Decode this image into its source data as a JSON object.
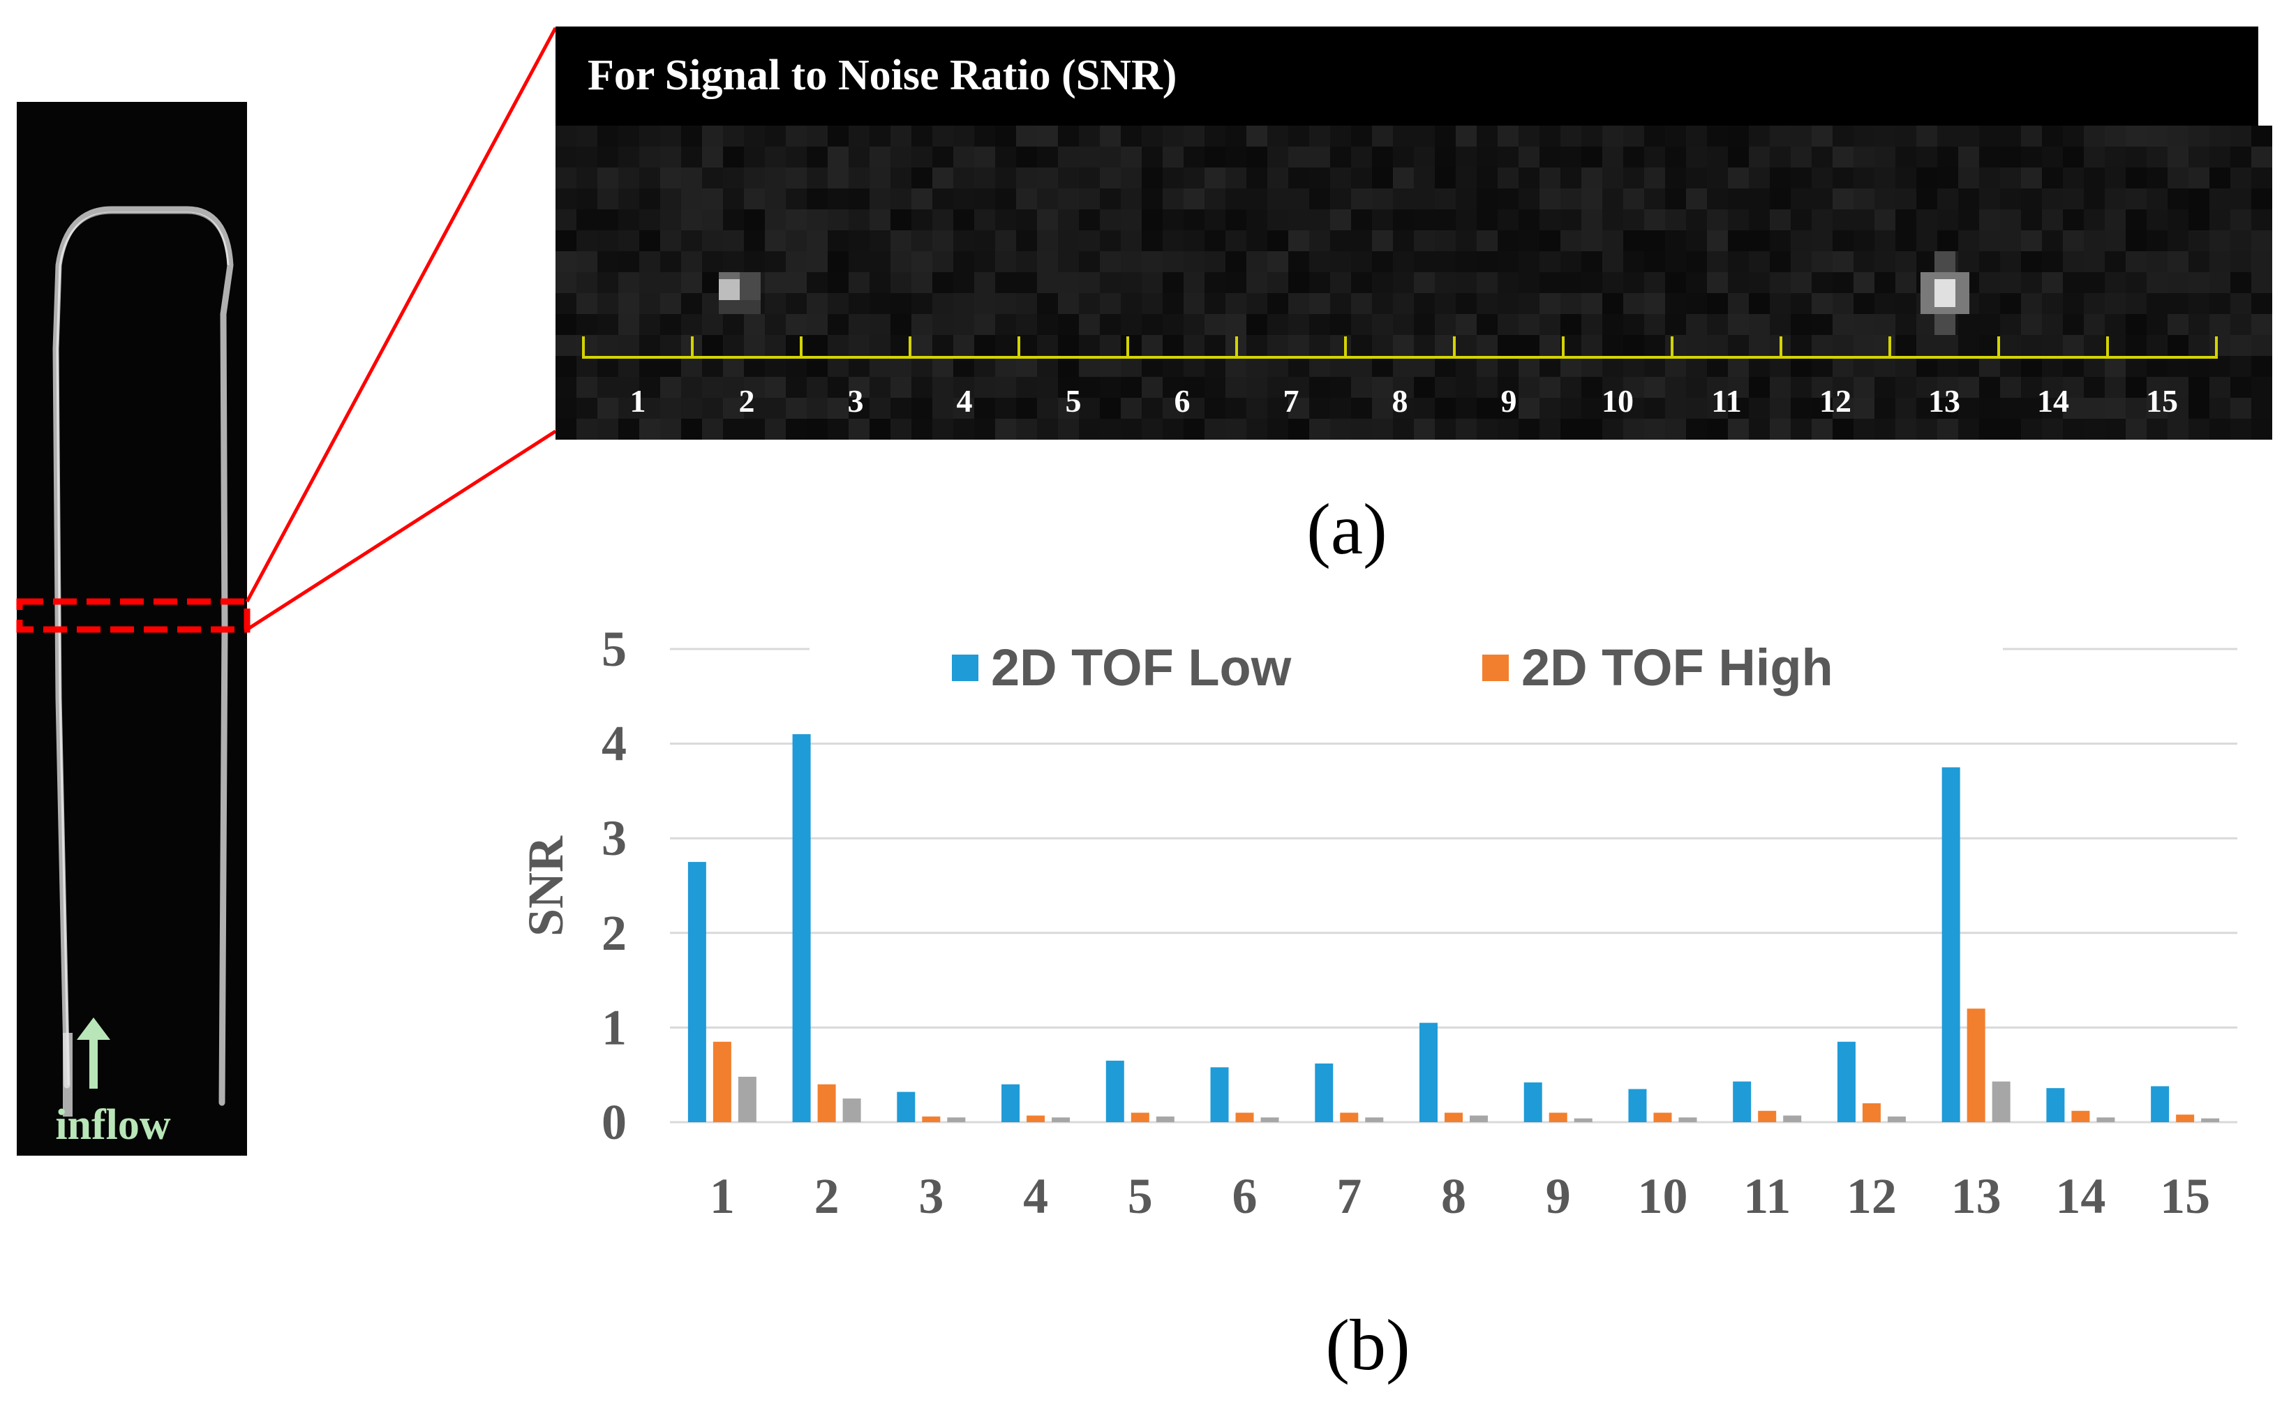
{
  "phantom": {
    "inflow_label": "inflow"
  },
  "roi_panel": {
    "title": "For Signal to Noise Ratio (SNR)",
    "roi_labels": [
      "1",
      "2",
      "3",
      "4",
      "5",
      "6",
      "7",
      "8",
      "9",
      "10",
      "11",
      "12",
      "13",
      "14",
      "15"
    ],
    "caption": "(a)"
  },
  "chart_caption": "(b)",
  "colors": {
    "series_low": "#1f9bd7",
    "series_high": "#f27f2e",
    "series_third": "#a6a6a6",
    "gridline": "#d9d9d9",
    "axis_text": "#595959",
    "roi_highlight": "#ff0000",
    "ruler": "#d4d400"
  },
  "chart_data": {
    "type": "bar",
    "title": "",
    "xlabel": "",
    "ylabel": "SNR",
    "ylim": [
      0,
      5
    ],
    "yticks": [
      "0",
      "1",
      "2",
      "3",
      "4",
      "5"
    ],
    "categories": [
      "1",
      "2",
      "3",
      "4",
      "5",
      "6",
      "7",
      "8",
      "9",
      "10",
      "11",
      "12",
      "13",
      "14",
      "15"
    ],
    "legend_position": "top",
    "series": [
      {
        "name": "2D TOF Low",
        "legend": true,
        "values": [
          2.75,
          4.1,
          0.32,
          0.4,
          0.65,
          0.58,
          0.62,
          1.05,
          0.42,
          0.35,
          0.43,
          0.85,
          3.75,
          0.36,
          0.38
        ]
      },
      {
        "name": "2D TOF High",
        "legend": true,
        "values": [
          0.85,
          0.4,
          0.06,
          0.07,
          0.1,
          0.1,
          0.1,
          0.1,
          0.1,
          0.1,
          0.12,
          0.2,
          1.2,
          0.12,
          0.08
        ]
      },
      {
        "name": "",
        "legend": false,
        "values": [
          0.48,
          0.25,
          0.05,
          0.05,
          0.06,
          0.05,
          0.05,
          0.07,
          0.04,
          0.05,
          0.07,
          0.06,
          0.43,
          0.05,
          0.04
        ]
      }
    ]
  }
}
